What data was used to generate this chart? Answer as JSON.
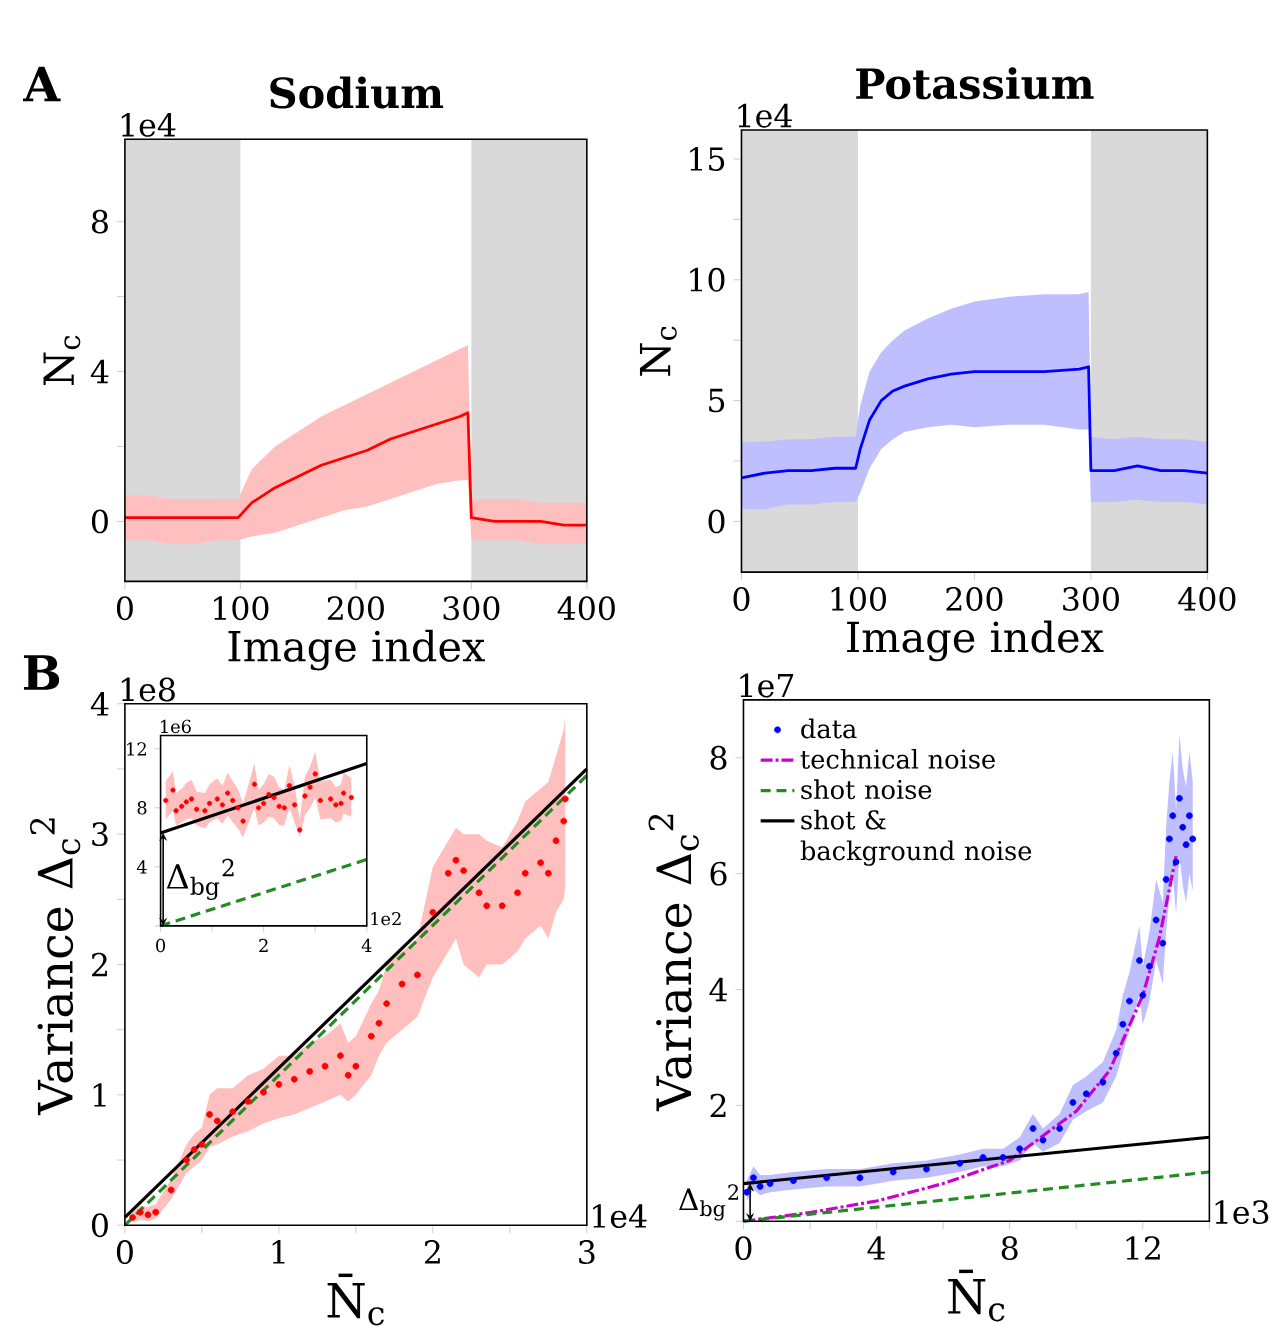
{
  "chart_data": [
    {
      "type": "line",
      "title": "Sodium",
      "xlabel": "Image index",
      "ylabel": "N$_{c}$",
      "xlim": [
        0,
        400
      ],
      "ylim": [
        -1.6,
        10.2
      ],
      "xticks": [
        0,
        100,
        200,
        300,
        400
      ],
      "yticks": [
        0,
        {
          "value": 2,
          "label": null
        },
        4,
        {
          "value": 6,
          "label": null
        },
        8
      ],
      "bands": [
        {
          "axis": "x",
          "from": 0,
          "to": 100,
          "color": "#d9d9d9"
        },
        {
          "axis": "x",
          "from": 300,
          "to": 400,
          "color": "#d9d9d9"
        }
      ],
      "annotations": [
        "A",
        "1e4"
      ],
      "series": [
        {
          "color": "#ff0000",
          "x": [
            0,
            20,
            40,
            60,
            80,
            98,
            110,
            130,
            150,
            170,
            190,
            210,
            230,
            250,
            270,
            290,
            297,
            300,
            320,
            340,
            360,
            380,
            400
          ],
          "values": [
            0.1,
            0.1,
            0.1,
            0.1,
            0.1,
            0.1,
            0.5,
            0.9,
            1.2,
            1.5,
            1.7,
            1.9,
            2.2,
            2.4,
            2.6,
            2.8,
            2.9,
            0.1,
            0.0,
            0.0,
            0.0,
            -0.1,
            -0.1
          ],
          "lower": [
            -0.5,
            -0.5,
            -0.6,
            -0.6,
            -0.5,
            -0.5,
            -0.4,
            -0.3,
            -0.1,
            0.1,
            0.3,
            0.4,
            0.6,
            0.8,
            1.0,
            1.1,
            1.1,
            -0.5,
            -0.5,
            -0.5,
            -0.6,
            -0.6,
            -0.6
          ],
          "upper": [
            0.7,
            0.7,
            0.6,
            0.6,
            0.6,
            0.6,
            1.4,
            2.0,
            2.4,
            2.8,
            3.1,
            3.4,
            3.7,
            4.0,
            4.3,
            4.6,
            4.7,
            0.6,
            0.6,
            0.6,
            0.5,
            0.5,
            0.5
          ]
        }
      ]
    },
    {
      "type": "line",
      "title": "Potassium",
      "xlabel": "Image index",
      "ylabel": "N$_{c}$",
      "xlim": [
        0,
        400
      ],
      "ylim": [
        -2.1,
        16.2
      ],
      "xticks": [
        0,
        100,
        200,
        300,
        400
      ],
      "yticks": [
        0,
        {
          "value": 2.5,
          "label": null
        },
        5,
        {
          "value": 7.5,
          "label": null
        },
        10,
        {
          "value": 12.5,
          "label": null
        },
        15
      ],
      "bands": [
        {
          "axis": "x",
          "from": 0,
          "to": 100,
          "color": "#d9d9d9"
        },
        {
          "axis": "x",
          "from": 300,
          "to": 400,
          "color": "#d9d9d9"
        }
      ],
      "annotations": [
        "1e4"
      ],
      "series": [
        {
          "color": "#0000ff",
          "x": [
            0,
            20,
            40,
            60,
            80,
            98,
            102,
            110,
            120,
            130,
            140,
            160,
            180,
            200,
            230,
            260,
            290,
            298,
            300,
            320,
            340,
            360,
            380,
            400
          ],
          "values": [
            1.8,
            2.0,
            2.1,
            2.1,
            2.2,
            2.2,
            3.0,
            4.2,
            5.0,
            5.4,
            5.6,
            5.9,
            6.1,
            6.2,
            6.2,
            6.2,
            6.3,
            6.4,
            2.1,
            2.1,
            2.3,
            2.1,
            2.1,
            2.0
          ],
          "lower": [
            0.5,
            0.5,
            0.7,
            0.7,
            0.8,
            0.8,
            1.2,
            2.2,
            3.0,
            3.4,
            3.7,
            3.9,
            4.0,
            3.9,
            4.0,
            4.0,
            3.8,
            3.8,
            0.8,
            0.8,
            0.9,
            0.8,
            0.8,
            0.7
          ],
          "upper": [
            3.3,
            3.3,
            3.4,
            3.4,
            3.5,
            3.5,
            4.8,
            6.2,
            7.0,
            7.5,
            7.9,
            8.4,
            8.8,
            9.1,
            9.3,
            9.4,
            9.4,
            9.5,
            3.5,
            3.4,
            3.5,
            3.4,
            3.4,
            3.3
          ]
        }
      ]
    },
    {
      "type": "scatter",
      "xlabel": "N̄$_{c}$",
      "ylabel": "Variance Δ$_{c}$$^{2}$",
      "xlim": [
        0,
        3
      ],
      "ylim": [
        0,
        4
      ],
      "xticks": [
        0,
        {
          "value": 0.5,
          "label": null
        },
        1,
        {
          "value": 1.5,
          "label": null
        },
        2,
        {
          "value": 2.5,
          "label": null
        },
        3
      ],
      "yticks": [
        0,
        {
          "value": 0.5,
          "label": null
        },
        1,
        {
          "value": 1.5,
          "label": null
        },
        2,
        {
          "value": 2.5,
          "label": null
        },
        3,
        {
          "value": 3.5,
          "label": null
        },
        4
      ],
      "annotations": [
        "B",
        "1e8",
        "1e4"
      ],
      "series": [
        {
          "color": "#ff0000",
          "x": [
            0.05,
            0.1,
            0.15,
            0.2,
            0.3,
            0.4,
            0.45,
            0.5,
            0.55,
            0.6,
            0.7,
            0.8,
            0.9,
            1.0,
            1.1,
            1.2,
            1.3,
            1.4,
            1.45,
            1.5,
            1.6,
            1.65,
            1.7,
            1.8,
            1.9,
            2.0,
            2.1,
            2.15,
            2.2,
            2.3,
            2.35,
            2.45,
            2.55,
            2.6,
            2.7,
            2.75,
            2.8,
            2.85,
            2.86
          ],
          "values": [
            0.06,
            0.1,
            0.08,
            0.1,
            0.27,
            0.5,
            0.58,
            0.62,
            0.85,
            0.8,
            0.87,
            0.95,
            1.02,
            1.08,
            1.12,
            1.18,
            1.22,
            1.3,
            1.15,
            1.22,
            1.45,
            1.55,
            1.7,
            1.85,
            1.92,
            2.4,
            2.7,
            2.8,
            2.72,
            2.55,
            2.45,
            2.45,
            2.55,
            2.7,
            2.78,
            2.7,
            2.95,
            3.1,
            3.27
          ],
          "lower": [
            0.02,
            0.04,
            0.03,
            0.05,
            0.2,
            0.4,
            0.45,
            0.5,
            0.6,
            0.62,
            0.68,
            0.72,
            0.78,
            0.82,
            0.85,
            0.9,
            0.95,
            1.0,
            0.95,
            1.0,
            1.15,
            1.3,
            1.4,
            1.5,
            1.6,
            1.9,
            2.1,
            2.2,
            2.0,
            1.9,
            2.0,
            2.0,
            2.1,
            2.2,
            2.3,
            2.2,
            2.4,
            2.5,
            2.6
          ],
          "upper": [
            0.1,
            0.15,
            0.14,
            0.16,
            0.35,
            0.62,
            0.7,
            0.75,
            1.0,
            1.05,
            1.05,
            1.15,
            1.2,
            1.3,
            1.3,
            1.4,
            1.45,
            1.55,
            1.4,
            1.45,
            1.7,
            1.8,
            2.0,
            2.1,
            2.2,
            2.75,
            2.95,
            3.05,
            3.0,
            3.0,
            2.95,
            2.9,
            3.1,
            3.25,
            3.35,
            3.4,
            3.6,
            3.8,
            3.9
          ]
        },
        {
          "type": "line",
          "color": "#000000",
          "x": [
            0,
            3
          ],
          "values": [
            0.06,
            3.5
          ]
        },
        {
          "type": "line",
          "color": "#228b22",
          "line_style": "dashed",
          "x": [
            0,
            3
          ],
          "values": [
            0,
            3.45
          ]
        }
      ]
    },
    {
      "type": "scatter",
      "xlim": [
        0,
        4
      ],
      "ylim": [
        0,
        12.9
      ],
      "xticks": [
        0,
        {
          "value": 1,
          "label": null
        },
        2,
        {
          "value": 3,
          "label": null
        },
        4
      ],
      "yticks": [
        {
          "value": 0,
          "label": null
        },
        4,
        8,
        12
      ],
      "annotations": [
        "1e6",
        "1e2",
        {
          "text": "Δ$_{bg}$$^{2}$",
          "x": 0.05,
          "y": 6.3
        }
      ],
      "series": [
        {
          "color": "#ff0000",
          "x": [
            0.1,
            0.24,
            0.3,
            0.41,
            0.5,
            0.6,
            0.7,
            0.86,
            0.95,
            1.1,
            1.2,
            1.3,
            1.4,
            1.5,
            1.6,
            1.82,
            1.9,
            2.0,
            2.1,
            2.2,
            2.3,
            2.4,
            2.5,
            2.6,
            2.7,
            2.8,
            2.9,
            3.0,
            3.1,
            3.3,
            3.4,
            3.5,
            3.55,
            3.7
          ],
          "values": [
            8.5,
            9.2,
            7.8,
            8.1,
            8.4,
            8.6,
            7.9,
            7.8,
            8.3,
            8.6,
            8.2,
            9.0,
            8.5,
            8.0,
            7.1,
            9.6,
            8.0,
            8.3,
            8.9,
            8.7,
            8.1,
            8.0,
            9.5,
            8.2,
            6.5,
            8.8,
            9.4,
            10.3,
            8.5,
            8.6,
            8.2,
            8.3,
            9.0,
            8.7
          ],
          "lower": [
            7.2,
            7.8,
            6.8,
            7.0,
            7.2,
            7.3,
            6.8,
            6.6,
            7.0,
            7.3,
            6.9,
            7.5,
            7.0,
            6.6,
            6.0,
            8.0,
            6.8,
            7.0,
            7.4,
            7.3,
            6.8,
            6.8,
            8.0,
            7.0,
            6.0,
            7.5,
            8.0,
            8.7,
            7.2,
            7.3,
            7.0,
            7.1,
            7.6,
            7.4
          ],
          "upper": [
            9.8,
            10.5,
            9.0,
            9.3,
            9.7,
            9.9,
            9.1,
            9.0,
            9.6,
            10.0,
            9.5,
            10.4,
            9.8,
            9.3,
            8.3,
            11.0,
            9.2,
            9.6,
            10.3,
            10.1,
            9.4,
            9.2,
            10.9,
            9.5,
            7.2,
            10.1,
            10.8,
            11.8,
            9.8,
            9.9,
            9.4,
            9.6,
            10.4,
            10.0
          ]
        },
        {
          "type": "line",
          "color": "#000000",
          "x": [
            0,
            4
          ],
          "values": [
            6.3,
            11.0
          ]
        },
        {
          "type": "line",
          "color": "#228b22",
          "line_style": "dashed",
          "x": [
            0,
            4
          ],
          "values": [
            0,
            4.5
          ]
        }
      ]
    },
    {
      "type": "scatter",
      "xlabel": "N̄$_{c}$",
      "ylabel": "Variance Δ$_{c}$$^{2}$",
      "xlim": [
        0,
        14
      ],
      "ylim": [
        0,
        9
      ],
      "xticks": [
        0,
        {
          "value": 2,
          "label": null
        },
        4,
        {
          "value": 6,
          "label": null
        },
        8,
        {
          "value": 10,
          "label": null
        },
        12,
        {
          "value": 14,
          "label": null
        }
      ],
      "yticks": [
        {
          "value": 0,
          "label": null
        },
        2,
        4,
        6,
        8
      ],
      "legend": "top left",
      "annotations": [
        "1e7",
        "1e3",
        {
          "text": "Δ$_{bg}$$^{2}$",
          "x": 0.2,
          "y": 0.65
        }
      ],
      "series": [
        {
          "name": "data",
          "color": "#0000ff",
          "x": [
            0.1,
            0.3,
            0.5,
            0.8,
            1.5,
            2.5,
            3.5,
            4.5,
            5.5,
            6.5,
            7.2,
            7.8,
            8.3,
            8.7,
            9.0,
            9.5,
            9.9,
            10.3,
            10.8,
            11.2,
            11.4,
            11.6,
            11.9,
            12.0,
            12.2,
            12.4,
            12.6,
            12.7,
            12.8,
            12.9,
            13.0,
            13.1,
            13.2,
            13.3,
            13.4,
            13.5
          ],
          "values": [
            0.5,
            0.75,
            0.6,
            0.65,
            0.7,
            0.75,
            0.75,
            0.85,
            0.9,
            1.0,
            1.1,
            1.1,
            1.25,
            1.6,
            1.4,
            1.6,
            2.05,
            2.2,
            2.4,
            2.9,
            3.4,
            3.8,
            4.5,
            3.9,
            4.4,
            5.2,
            4.8,
            5.9,
            6.6,
            7.0,
            6.2,
            7.3,
            6.8,
            6.5,
            7.0,
            6.6
          ],
          "lower": [
            0.35,
            0.55,
            0.45,
            0.5,
            0.55,
            0.6,
            0.6,
            0.7,
            0.75,
            0.85,
            0.95,
            0.95,
            1.05,
            1.35,
            1.2,
            1.35,
            1.75,
            1.9,
            2.05,
            2.5,
            2.9,
            3.3,
            3.9,
            3.4,
            3.8,
            4.5,
            4.1,
            5.0,
            5.6,
            6.0,
            5.3,
            6.3,
            5.8,
            5.5,
            6.0,
            5.7
          ],
          "upper": [
            0.7,
            0.95,
            0.8,
            0.8,
            0.85,
            0.9,
            0.9,
            1.0,
            1.05,
            1.15,
            1.25,
            1.25,
            1.45,
            1.85,
            1.6,
            1.85,
            2.35,
            2.5,
            2.75,
            3.3,
            3.9,
            4.3,
            5.1,
            4.4,
            5.0,
            5.9,
            5.5,
            6.8,
            7.6,
            8.1,
            7.1,
            8.4,
            7.8,
            7.5,
            8.1,
            7.6
          ]
        },
        {
          "name": "technical noise",
          "type": "line",
          "color": "#cc00cc",
          "line_style": "dashdot",
          "x": [
            0,
            2,
            4,
            6,
            8,
            10,
            11,
            12,
            12.5,
            13
          ],
          "values": [
            0,
            0.15,
            0.35,
            0.65,
            1.05,
            1.9,
            2.6,
            3.9,
            4.9,
            6.3
          ]
        },
        {
          "name": "shot noise",
          "type": "line",
          "color": "#228b22",
          "line_style": "dashed",
          "x": [
            0,
            14
          ],
          "values": [
            0,
            0.85
          ]
        },
        {
          "name": "shot & background noise",
          "type": "line",
          "color": "#000000",
          "x": [
            0,
            14
          ],
          "values": [
            0.65,
            1.45
          ]
        }
      ]
    }
  ]
}
